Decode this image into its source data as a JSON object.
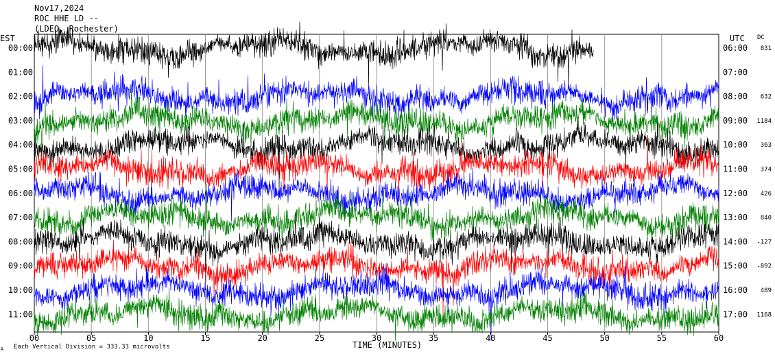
{
  "header": {
    "date": "Nov17,2024",
    "station": "ROC HHE LD --",
    "network": "(LDEO, Rochester)"
  },
  "chart_data": {
    "type": "line",
    "plot_kind": "helicorder",
    "left_axis_title": "EST",
    "right_axis_title": "UTC",
    "dc_title": "DC",
    "xlabel": "TIME (MINUTES)",
    "x_ticks": [
      "00",
      "05",
      "10",
      "15",
      "20",
      "25",
      "30",
      "35",
      "40",
      "45",
      "50",
      "55",
      "60"
    ],
    "xlim": [
      0,
      60
    ],
    "grid": true,
    "scale_note": "Each Vertical Division =  333.33 microvolts",
    "corner_mark": "A",
    "color_cycle": [
      "#000000",
      "#ff0000",
      "#0000ff",
      "#008000"
    ],
    "rows": [
      {
        "est": "00:00",
        "utc": "06:00",
        "dc": "831",
        "color": "#000000",
        "end_minute": 49
      },
      {
        "est": "01:00",
        "utc": "07:00",
        "dc": "",
        "color": "#ff0000",
        "end_minute": 0
      },
      {
        "est": "02:00",
        "utc": "08:00",
        "dc": "632",
        "color": "#0000ff",
        "end_minute": 60
      },
      {
        "est": "03:00",
        "utc": "09:00",
        "dc": "1184",
        "color": "#008000",
        "end_minute": 60
      },
      {
        "est": "04:00",
        "utc": "10:00",
        "dc": "363",
        "color": "#000000",
        "end_minute": 60
      },
      {
        "est": "05:00",
        "utc": "11:00",
        "dc": "374",
        "color": "#ff0000",
        "end_minute": 60
      },
      {
        "est": "06:00",
        "utc": "12:00",
        "dc": "426",
        "color": "#0000ff",
        "end_minute": 60
      },
      {
        "est": "07:00",
        "utc": "13:00",
        "dc": "840",
        "color": "#008000",
        "end_minute": 60
      },
      {
        "est": "08:00",
        "utc": "14:00",
        "dc": "-127",
        "color": "#000000",
        "end_minute": 60
      },
      {
        "est": "09:00",
        "utc": "15:00",
        "dc": "-892",
        "color": "#ff0000",
        "end_minute": 60
      },
      {
        "est": "10:00",
        "utc": "16:00",
        "dc": "489",
        "color": "#0000ff",
        "end_minute": 60
      },
      {
        "est": "11:00",
        "utc": "17:00",
        "dc": "1168",
        "color": "#008000",
        "end_minute": 60
      }
    ]
  }
}
